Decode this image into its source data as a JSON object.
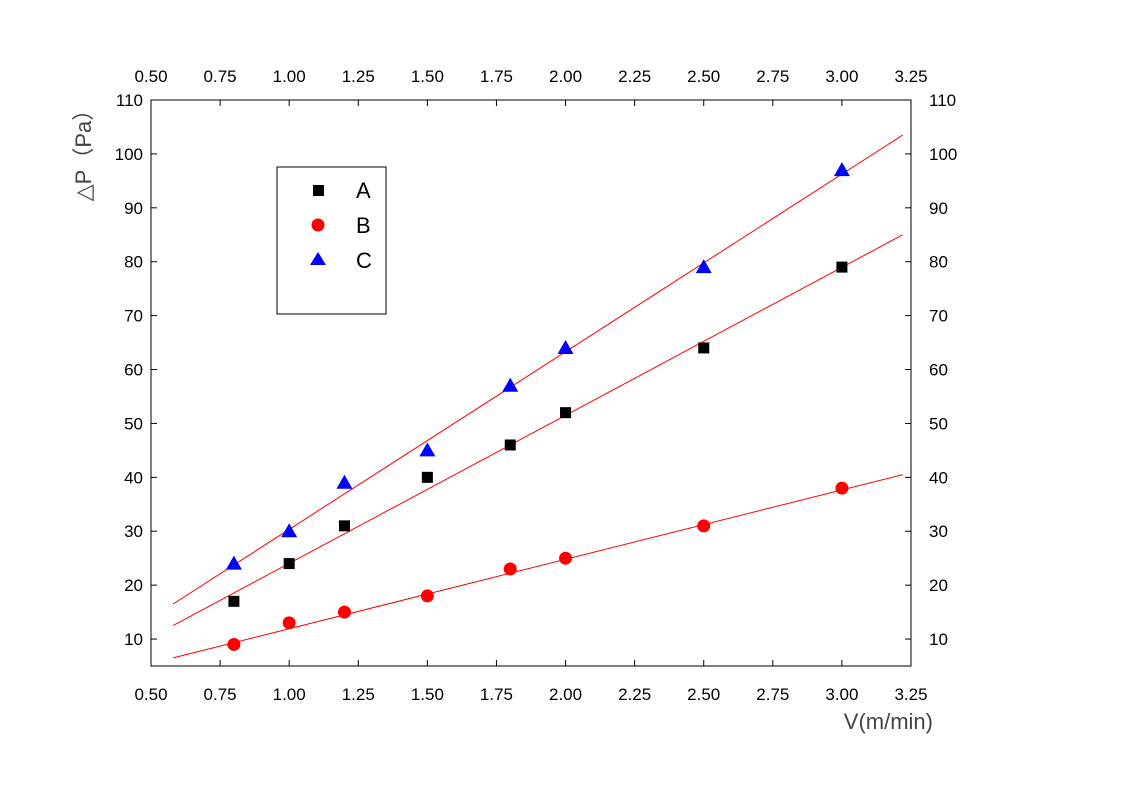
{
  "chart_data": {
    "type": "scatter",
    "title": "",
    "xlabel": "V(m/min)",
    "ylabel": "△P（Pa）",
    "xlim": [
      0.5,
      3.25
    ],
    "ylim": [
      5,
      110
    ],
    "x_ticks": [
      "0.50",
      "0.75",
      "1.00",
      "1.25",
      "1.50",
      "1.75",
      "2.00",
      "2.25",
      "2.50",
      "2.75",
      "3.00",
      "3.25"
    ],
    "y_ticks": [
      "10",
      "20",
      "30",
      "40",
      "50",
      "60",
      "70",
      "80",
      "90",
      "100",
      "110"
    ],
    "grid": false,
    "legend_position": "top-left",
    "fit_line_color": "#ff0000",
    "series": [
      {
        "name": "A",
        "marker": "square",
        "color": "#000000",
        "x": [
          0.8,
          1.0,
          1.2,
          1.5,
          1.8,
          2.0,
          2.5,
          3.0
        ],
        "y": [
          17,
          24,
          31,
          40,
          46,
          52,
          64,
          79
        ],
        "fit": {
          "x": [
            0.58,
            3.22
          ],
          "y": [
            12.5,
            85
          ]
        }
      },
      {
        "name": "B",
        "marker": "circle",
        "color": "#ff0000",
        "x": [
          0.8,
          1.0,
          1.2,
          1.5,
          1.8,
          2.0,
          2.5,
          3.0
        ],
        "y": [
          9,
          13,
          15,
          18,
          23,
          25,
          31,
          38
        ],
        "fit": {
          "x": [
            0.58,
            3.22
          ],
          "y": [
            6.5,
            40.5
          ]
        }
      },
      {
        "name": "C",
        "marker": "triangle",
        "color": "#0000ff",
        "x": [
          0.8,
          1.0,
          1.2,
          1.5,
          1.8,
          2.0,
          2.5,
          3.0
        ],
        "y": [
          24,
          30,
          39,
          45,
          57,
          64,
          79,
          97
        ],
        "fit": {
          "x": [
            0.58,
            3.22
          ],
          "y": [
            16.5,
            103.5
          ]
        }
      }
    ]
  }
}
